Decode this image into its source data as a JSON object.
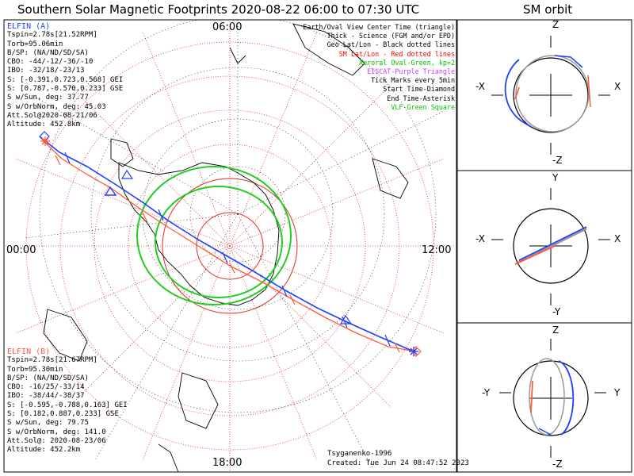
{
  "title": "Southern Solar Magnetic Footprints 2020-08-22 06:00 to 07:30 UTC",
  "orbit_title": "SM orbit",
  "clock_labels": {
    "top": "06:00",
    "left": "00:00",
    "right": "12:00",
    "bottom": "18:00"
  },
  "probe_a": {
    "name": "ELFIN (A)",
    "color": "#1f3fff",
    "lines": [
      "Tspin=2.78s[21.52RPM]",
      "Torb=95.06min",
      "B/SP: (NA/ND/SD/SA)",
      "CBO: -44/-12/-36/-10",
      "IBO: -32/18/-23/13",
      "S: [-0.391,0.723,0.568] GEI",
      "S: [0.787,-0.570,0.233] GSE",
      "S w/Sun, deg: 37.77",
      "S w/OrbNorm, deg: 45.03",
      "Att.Sol@2020-08-21/06",
      "Altitude: 452.8km"
    ]
  },
  "probe_b": {
    "name": "ELFIN (B)",
    "color": "#ff5a3c",
    "lines": [
      "Tspin=2.78s[21.67RPM]",
      "Torb=95.30min",
      "B/SP: (NA/ND/SD/SA)",
      "CBO: -16/25/-33/14",
      "IBO: -38/44/-38/37",
      "S: [-0.595,-0.788,0.163] GEI",
      "S: [0.182,0.887,0.233] GSE",
      "S w/Sun, deg: 79.75",
      "S w/OrbNorm, deg: 141.0",
      "Att.Sol@: 2020-08-23/06",
      "Altitude: 452.2km"
    ]
  },
  "legend": [
    {
      "text": "Earth/Oval View Center Time (triangle)",
      "color": "#000000"
    },
    {
      "text": "Thick - Science (FGM and/or EPD)",
      "color": "#000000"
    },
    {
      "text": "Geo Lat/Lon - Black dotted lines",
      "color": "#000000"
    },
    {
      "text": "SM Lat/Lon - Red dotted lines",
      "color": "#ff0000"
    },
    {
      "text": "Auroral Oval-Green, kp=2",
      "color": "#00c000"
    },
    {
      "text": "EISCAT-Purple Triangle",
      "color": "#c040ff"
    },
    {
      "text": "Tick Marks every 5min",
      "color": "#000000"
    },
    {
      "text": "Start Time-Diamond",
      "color": "#000000"
    },
    {
      "text": "End Time-Asterisk",
      "color": "#000000"
    },
    {
      "text": "VLF-Green Square",
      "color": "#00c000"
    }
  ],
  "credit": "Tsyganenko-1996",
  "created": "Created: Tue Jun 24 08:47:52 2023",
  "orbit_panels": [
    {
      "top": "Z",
      "bottom": "-Z",
      "left": "-X",
      "right": "X"
    },
    {
      "top": "Y",
      "bottom": "-Y",
      "left": "-X",
      "right": "X"
    },
    {
      "top": "Z",
      "bottom": "-Z",
      "left": "-Y",
      "right": "Y"
    }
  ]
}
